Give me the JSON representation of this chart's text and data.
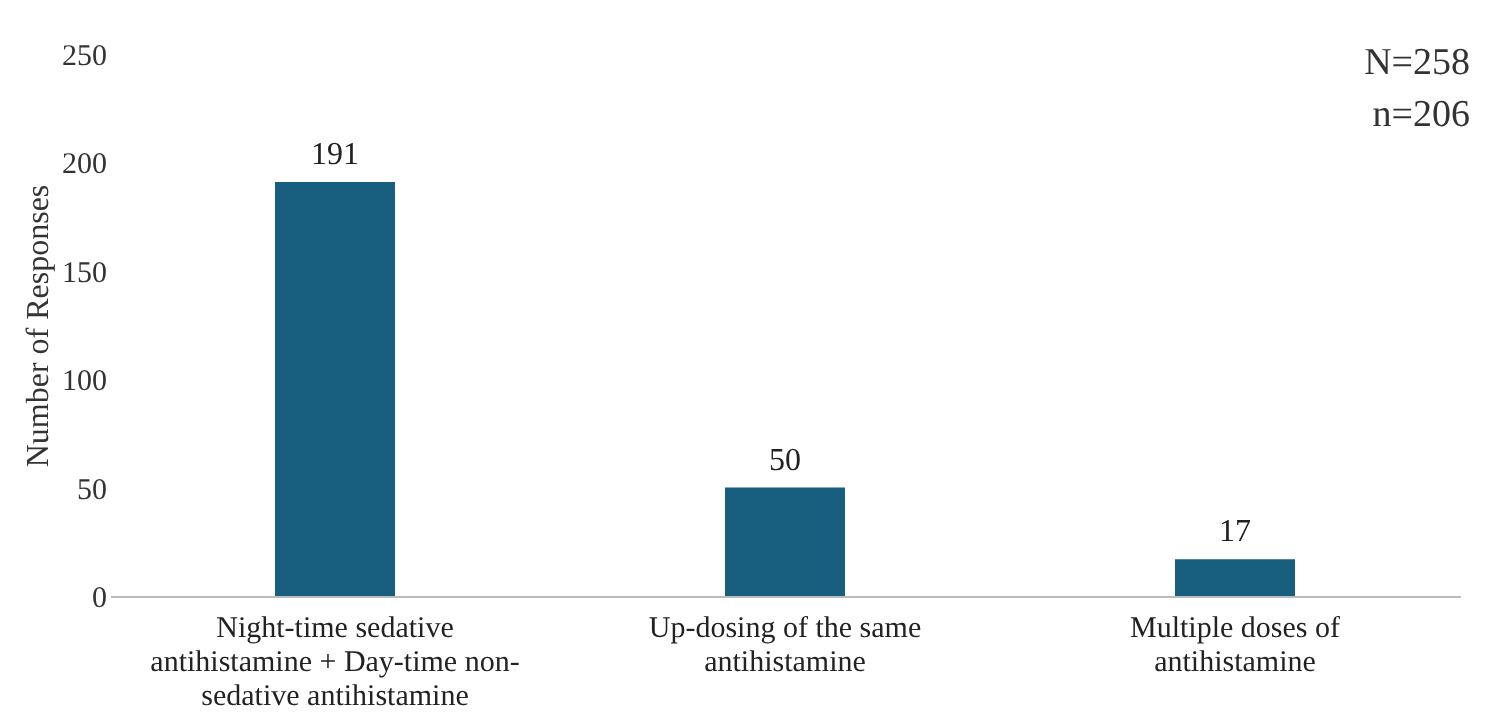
{
  "chart_data": {
    "type": "bar",
    "ylabel": "Number of Responses",
    "categories": [
      "Night-time sedative antihistamine + Day-time non-sedative antihistamine",
      "Up-dosing of the same antihistamine",
      "Multiple doses of antihistamine"
    ],
    "values": [
      191,
      50,
      17
    ],
    "color": "#175e7f",
    "ylim": [
      0,
      250
    ],
    "yticks": [
      0,
      50,
      100,
      150,
      200,
      250
    ],
    "grid": false,
    "data_labels": true,
    "annotations": [
      "N=258",
      "n=206"
    ]
  }
}
